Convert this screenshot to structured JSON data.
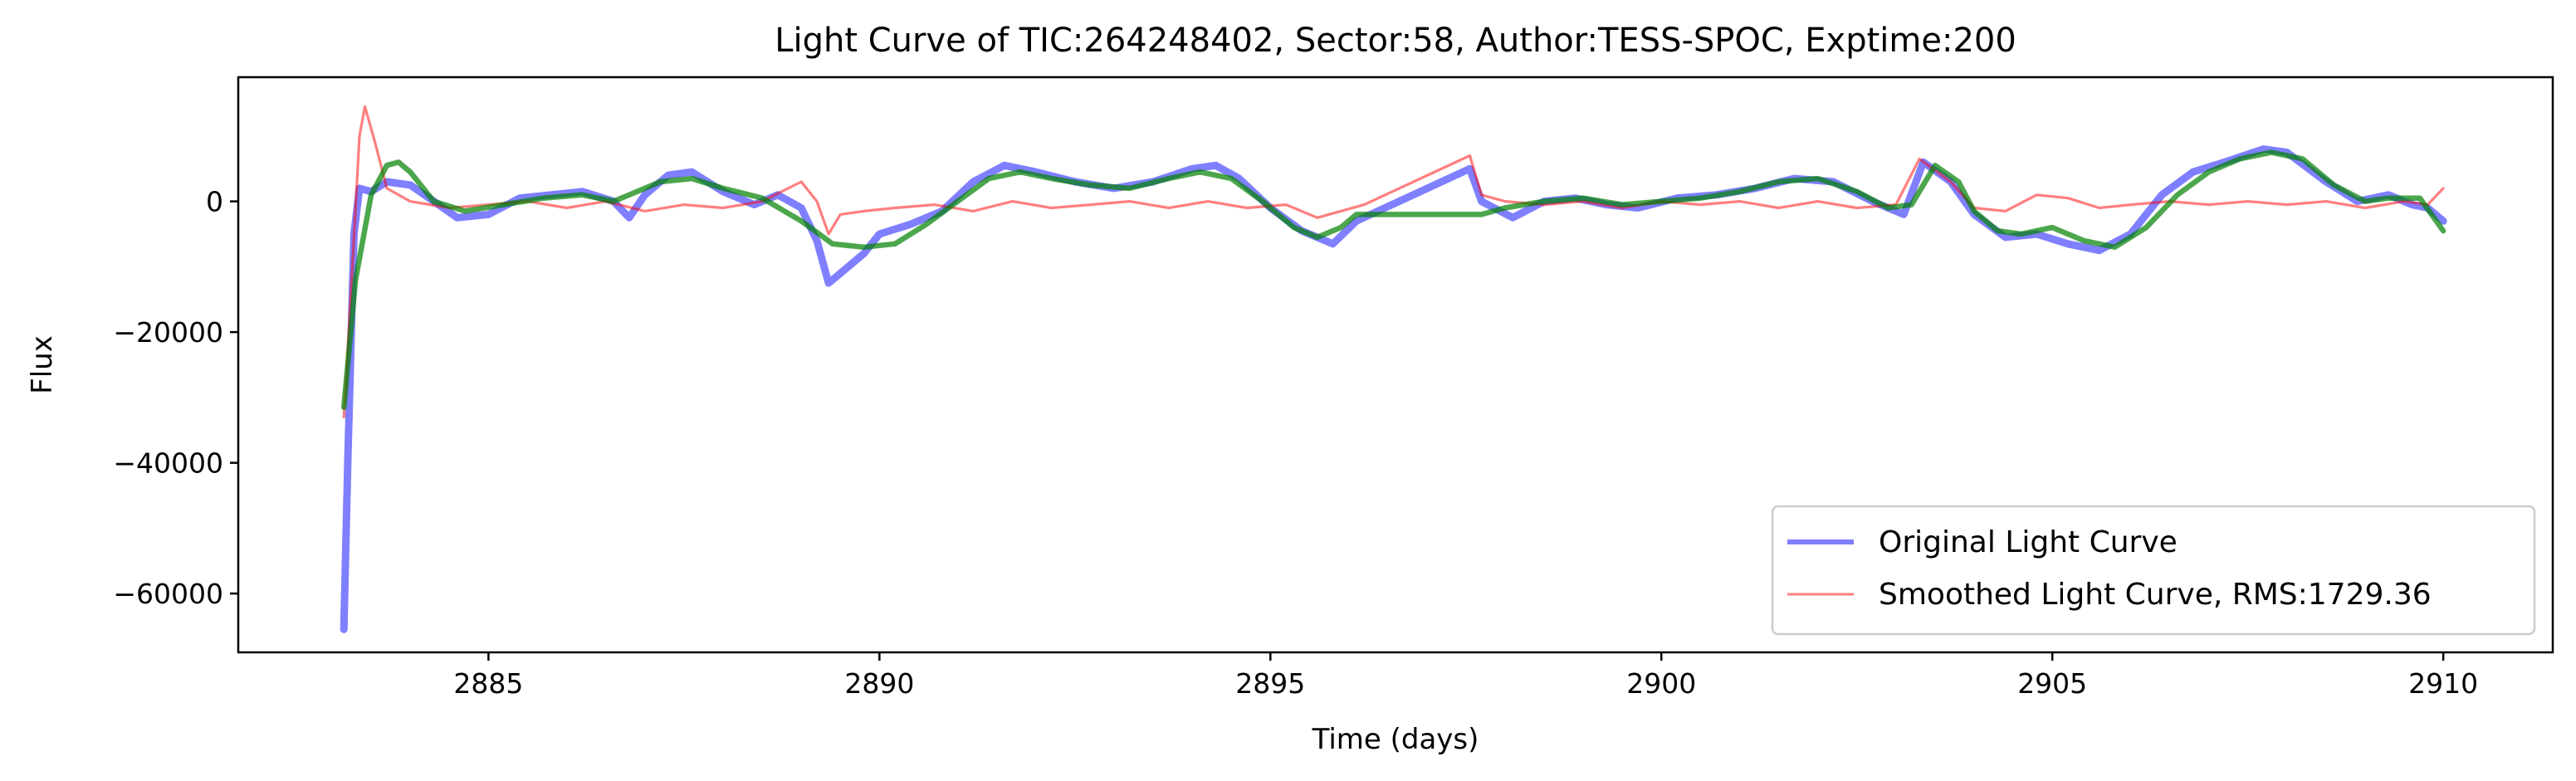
{
  "chart_data": {
    "type": "line",
    "title": "Light Curve of TIC:264248402, Sector:58, Author:TESS-SPOC, Exptime:200",
    "xlabel": "Time (days)",
    "ylabel": "Flux",
    "xlim": [
      2881.8,
      2911.4
    ],
    "ylim": [
      -69000,
      19000
    ],
    "xticks": [
      2885,
      2890,
      2895,
      2900,
      2905,
      2910
    ],
    "yticks": [
      -60000,
      -40000,
      -20000,
      0
    ],
    "ytick_labels": [
      "−60000",
      "−40000",
      "−20000",
      "0"
    ],
    "legend_position": "lower-right",
    "grid": false,
    "series": [
      {
        "name": "Original Light Curve",
        "color": "#0000ff",
        "opacity": 0.5,
        "role": "legend",
        "points": [
          [
            2883.15,
            -65500
          ],
          [
            2883.2,
            -40000
          ],
          [
            2883.28,
            -5000
          ],
          [
            2883.35,
            2000
          ],
          [
            2883.5,
            1500
          ],
          [
            2883.7,
            3000
          ],
          [
            2884.0,
            2500
          ],
          [
            2884.3,
            0
          ],
          [
            2884.6,
            -2500
          ],
          [
            2885.0,
            -2000
          ],
          [
            2885.4,
            500
          ],
          [
            2885.8,
            1000
          ],
          [
            2886.2,
            1500
          ],
          [
            2886.6,
            0
          ],
          [
            2886.8,
            -2500
          ],
          [
            2887.0,
            1000
          ],
          [
            2887.3,
            4000
          ],
          [
            2887.6,
            4500
          ],
          [
            2888.0,
            1500
          ],
          [
            2888.4,
            -500
          ],
          [
            2888.7,
            1000
          ],
          [
            2889.0,
            -1000
          ],
          [
            2889.2,
            -6000
          ],
          [
            2889.35,
            -12500
          ],
          [
            2889.5,
            -11000
          ],
          [
            2889.8,
            -8000
          ],
          [
            2890.0,
            -5000
          ],
          [
            2890.4,
            -3500
          ],
          [
            2890.8,
            -1500
          ],
          [
            2891.2,
            3000
          ],
          [
            2891.6,
            5500
          ],
          [
            2892.0,
            4500
          ],
          [
            2892.5,
            3000
          ],
          [
            2893.0,
            2000
          ],
          [
            2893.5,
            3000
          ],
          [
            2894.0,
            5000
          ],
          [
            2894.3,
            5500
          ],
          [
            2894.6,
            3500
          ],
          [
            2895.0,
            -1000
          ],
          [
            2895.4,
            -4500
          ],
          [
            2895.8,
            -6500
          ],
          [
            2896.1,
            -3000
          ],
          [
            2897.55,
            5000
          ],
          [
            2897.7,
            0
          ],
          [
            2898.1,
            -2500
          ],
          [
            2898.5,
            0
          ],
          [
            2898.9,
            500
          ],
          [
            2899.3,
            -500
          ],
          [
            2899.7,
            -1000
          ],
          [
            2900.2,
            500
          ],
          [
            2900.7,
            1000
          ],
          [
            2901.2,
            2000
          ],
          [
            2901.7,
            3500
          ],
          [
            2902.2,
            3000
          ],
          [
            2902.7,
            0
          ],
          [
            2903.1,
            -2000
          ],
          [
            2903.35,
            6000
          ],
          [
            2903.7,
            3000
          ],
          [
            2904.0,
            -2000
          ],
          [
            2904.4,
            -5500
          ],
          [
            2904.8,
            -5000
          ],
          [
            2905.2,
            -6500
          ],
          [
            2905.6,
            -7500
          ],
          [
            2906.0,
            -5000
          ],
          [
            2906.4,
            1000
          ],
          [
            2906.8,
            4500
          ],
          [
            2907.2,
            6000
          ],
          [
            2907.7,
            8000
          ],
          [
            2908.0,
            7500
          ],
          [
            2908.5,
            3000
          ],
          [
            2908.9,
            0
          ],
          [
            2909.3,
            1000
          ],
          [
            2909.6,
            -500
          ],
          [
            2909.8,
            -1000
          ],
          [
            2910.0,
            -3000
          ]
        ]
      },
      {
        "name": "Smoothed Light Curve, RMS:1729.36",
        "color": "#ff0000",
        "opacity": 0.5,
        "role": "legend",
        "points": [
          [
            2883.15,
            -33000
          ],
          [
            2883.25,
            -12000
          ],
          [
            2883.35,
            10000
          ],
          [
            2883.42,
            14500
          ],
          [
            2883.55,
            9000
          ],
          [
            2883.7,
            2000
          ],
          [
            2884.0,
            0
          ],
          [
            2884.5,
            -1000
          ],
          [
            2885.0,
            -500
          ],
          [
            2885.5,
            0
          ],
          [
            2886.0,
            -1000
          ],
          [
            2886.5,
            0
          ],
          [
            2887.0,
            -1500
          ],
          [
            2887.5,
            -500
          ],
          [
            2888.0,
            -1000
          ],
          [
            2888.5,
            0
          ],
          [
            2889.0,
            3000
          ],
          [
            2889.2,
            0
          ],
          [
            2889.35,
            -5000
          ],
          [
            2889.5,
            -2000
          ],
          [
            2889.8,
            -1500
          ],
          [
            2890.2,
            -1000
          ],
          [
            2890.7,
            -500
          ],
          [
            2891.2,
            -1500
          ],
          [
            2891.7,
            0
          ],
          [
            2892.2,
            -1000
          ],
          [
            2892.7,
            -500
          ],
          [
            2893.2,
            0
          ],
          [
            2893.7,
            -1000
          ],
          [
            2894.2,
            0
          ],
          [
            2894.7,
            -1000
          ],
          [
            2895.2,
            -500
          ],
          [
            2895.6,
            -2500
          ],
          [
            2895.9,
            -1500
          ],
          [
            2896.2,
            -500
          ],
          [
            2897.55,
            7000
          ],
          [
            2897.7,
            1000
          ],
          [
            2898.0,
            0
          ],
          [
            2898.5,
            -500
          ],
          [
            2899.0,
            0
          ],
          [
            2899.5,
            -1000
          ],
          [
            2900.0,
            0
          ],
          [
            2900.5,
            -500
          ],
          [
            2901.0,
            0
          ],
          [
            2901.5,
            -1000
          ],
          [
            2902.0,
            0
          ],
          [
            2902.5,
            -1000
          ],
          [
            2903.0,
            -500
          ],
          [
            2903.3,
            6500
          ],
          [
            2903.7,
            3000
          ],
          [
            2904.0,
            -1000
          ],
          [
            2904.4,
            -1500
          ],
          [
            2904.8,
            1000
          ],
          [
            2905.2,
            500
          ],
          [
            2905.6,
            -1000
          ],
          [
            2906.0,
            -500
          ],
          [
            2906.5,
            0
          ],
          [
            2907.0,
            -500
          ],
          [
            2907.5,
            0
          ],
          [
            2908.0,
            -500
          ],
          [
            2908.5,
            0
          ],
          [
            2909.0,
            -1000
          ],
          [
            2909.5,
            0
          ],
          [
            2909.8,
            -500
          ],
          [
            2910.0,
            2000
          ]
        ]
      },
      {
        "name": "",
        "color": "#008000",
        "opacity": 0.7,
        "role": "trend",
        "points": [
          [
            2883.15,
            -31500
          ],
          [
            2883.3,
            -12000
          ],
          [
            2883.5,
            1000
          ],
          [
            2883.7,
            5500
          ],
          [
            2883.85,
            6000
          ],
          [
            2884.0,
            4500
          ],
          [
            2884.3,
            0
          ],
          [
            2884.7,
            -1500
          ],
          [
            2885.2,
            -500
          ],
          [
            2885.7,
            500
          ],
          [
            2886.2,
            1000
          ],
          [
            2886.6,
            0
          ],
          [
            2886.9,
            1500
          ],
          [
            2887.2,
            3000
          ],
          [
            2887.6,
            3500
          ],
          [
            2888.0,
            2000
          ],
          [
            2888.5,
            500
          ],
          [
            2889.0,
            -3000
          ],
          [
            2889.4,
            -6500
          ],
          [
            2889.8,
            -7000
          ],
          [
            2890.2,
            -6500
          ],
          [
            2890.6,
            -3500
          ],
          [
            2891.0,
            0
          ],
          [
            2891.4,
            3500
          ],
          [
            2891.8,
            4500
          ],
          [
            2892.2,
            3500
          ],
          [
            2892.7,
            2500
          ],
          [
            2893.2,
            2000
          ],
          [
            2893.7,
            3500
          ],
          [
            2894.1,
            4500
          ],
          [
            2894.5,
            3500
          ],
          [
            2894.9,
            0
          ],
          [
            2895.3,
            -4000
          ],
          [
            2895.6,
            -5500
          ],
          [
            2895.9,
            -4000
          ],
          [
            2896.1,
            -2000
          ],
          [
            2897.7,
            -2000
          ],
          [
            2898.0,
            -1000
          ],
          [
            2898.5,
            0
          ],
          [
            2899.0,
            500
          ],
          [
            2899.5,
            -500
          ],
          [
            2900.0,
            0
          ],
          [
            2900.5,
            500
          ],
          [
            2901.0,
            1500
          ],
          [
            2901.5,
            3000
          ],
          [
            2902.0,
            3500
          ],
          [
            2902.5,
            1500
          ],
          [
            2902.9,
            -1000
          ],
          [
            2903.2,
            -500
          ],
          [
            2903.5,
            5500
          ],
          [
            2903.8,
            3000
          ],
          [
            2904.0,
            -1500
          ],
          [
            2904.3,
            -4500
          ],
          [
            2904.6,
            -5000
          ],
          [
            2905.0,
            -4000
          ],
          [
            2905.4,
            -6000
          ],
          [
            2905.8,
            -7000
          ],
          [
            2906.2,
            -4000
          ],
          [
            2906.6,
            1000
          ],
          [
            2907.0,
            4500
          ],
          [
            2907.4,
            6500
          ],
          [
            2907.8,
            7500
          ],
          [
            2908.2,
            6500
          ],
          [
            2908.6,
            2500
          ],
          [
            2909.0,
            0
          ],
          [
            2909.3,
            500
          ],
          [
            2909.7,
            500
          ],
          [
            2910.0,
            -4500
          ]
        ]
      }
    ]
  }
}
